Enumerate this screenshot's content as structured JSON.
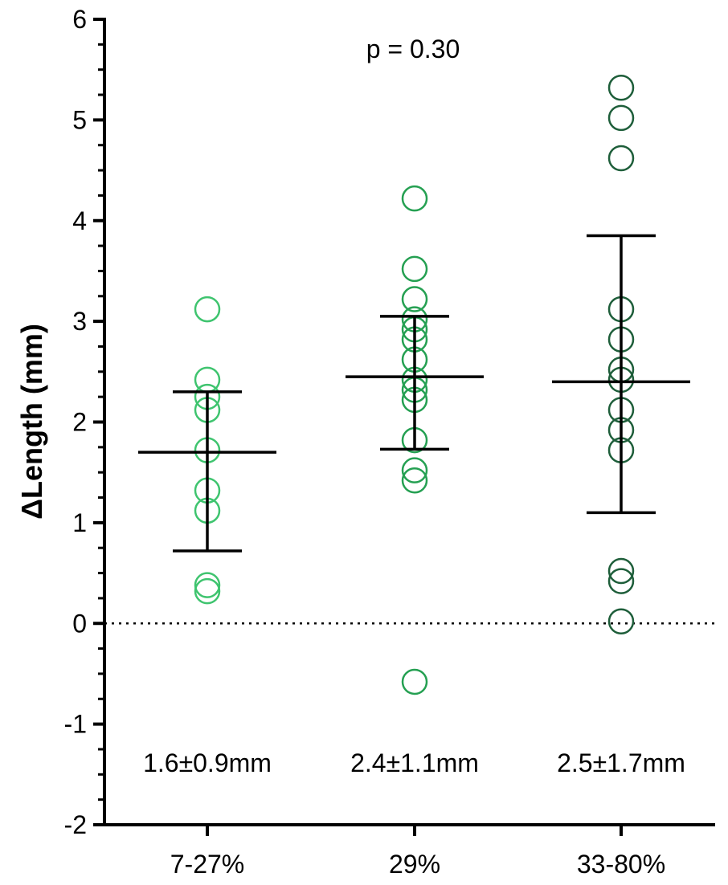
{
  "chart_data": {
    "type": "scatter",
    "ylabel": "ΔLength (mm)",
    "xlabel": "",
    "ylim": [
      -2,
      6
    ],
    "yticks": [
      "6",
      "5",
      "4",
      "3",
      "2",
      "1",
      "0",
      "-1",
      "-2"
    ],
    "categories": [
      "7-27%",
      "29%",
      "33-80%"
    ],
    "reference_line": {
      "y": 0,
      "style": "dotted"
    },
    "annotations": {
      "p_value": "p = 0.30",
      "group_stats": [
        "1.6±0.9mm",
        "2.4±1.1mm",
        "2.5±1.7mm"
      ]
    },
    "series": [
      {
        "category": "7-27%",
        "color": "#3fc46f",
        "values": [
          3.12,
          2.42,
          2.25,
          2.12,
          1.72,
          1.32,
          1.12,
          0.38,
          0.32
        ],
        "mean": 1.7,
        "error_upper": 2.3,
        "error_lower": 0.72
      },
      {
        "category": "29%",
        "color": "#25a052",
        "values": [
          4.22,
          3.52,
          3.22,
          3.02,
          2.92,
          2.82,
          2.62,
          2.42,
          2.32,
          2.22,
          1.82,
          1.52,
          1.42,
          -0.58
        ],
        "mean": 2.45,
        "error_upper": 3.05,
        "error_lower": 1.73
      },
      {
        "category": "33-80%",
        "color": "#1e5e3a",
        "values": [
          5.32,
          5.02,
          4.62,
          3.12,
          2.82,
          2.52,
          2.42,
          2.12,
          1.92,
          1.72,
          0.52,
          0.42,
          0.02
        ],
        "mean": 2.4,
        "error_upper": 3.85,
        "error_lower": 1.1
      }
    ]
  }
}
